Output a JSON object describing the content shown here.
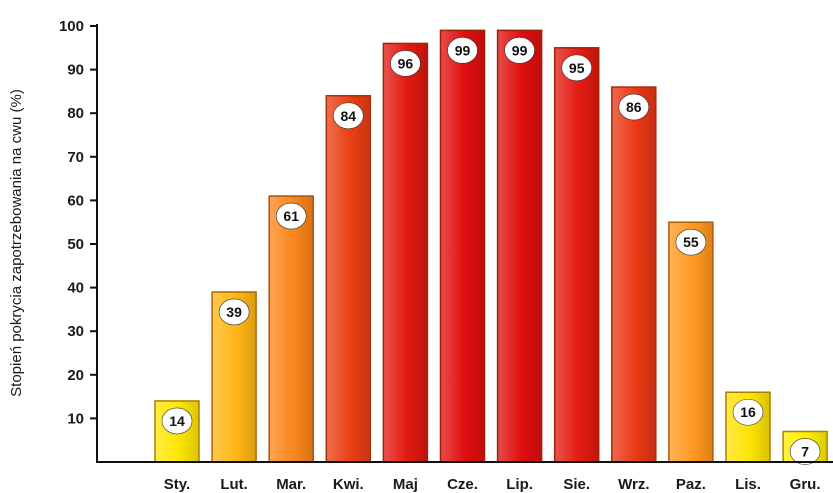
{
  "chart_data": {
    "type": "bar",
    "categories": [
      "Sty.",
      "Lut.",
      "Mar.",
      "Kwi.",
      "Maj",
      "Cze.",
      "Lip.",
      "Sie.",
      "Wrz.",
      "Paz.",
      "Lis.",
      "Gru."
    ],
    "values": [
      14,
      39,
      61,
      84,
      96,
      99,
      99,
      95,
      86,
      55,
      16,
      7
    ],
    "ylabel": "Stopień pokrycia zapotrzebowania na cwu (%)",
    "xlabel": "",
    "ylim": [
      0,
      100
    ],
    "yticks": [
      10,
      20,
      30,
      40,
      50,
      60,
      70,
      80,
      90,
      100
    ],
    "grid": false,
    "colors": {
      "low": "#ffee00",
      "mid": "#ff9a1f",
      "high": "#e00f0f",
      "axis": "#111111",
      "bar_border": "#b04000"
    }
  }
}
